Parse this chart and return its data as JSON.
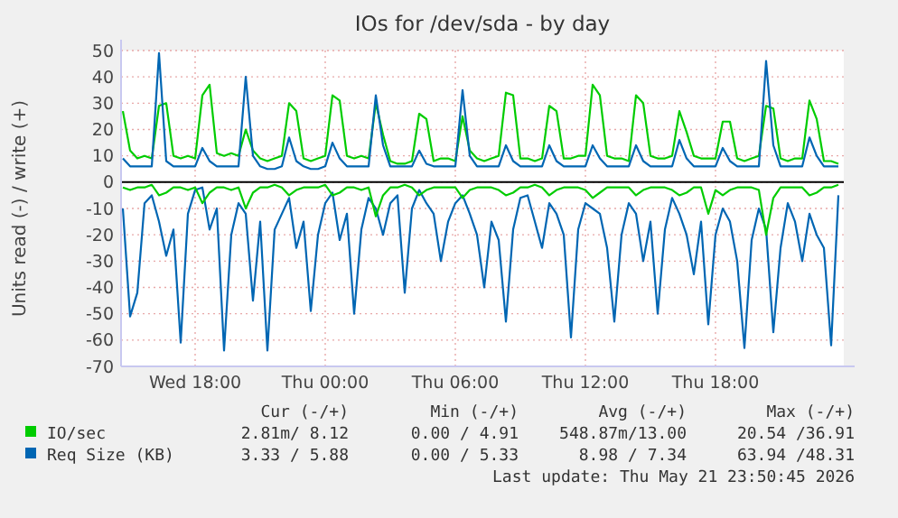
{
  "chart_data": {
    "type": "line",
    "title": "IOs for /dev/sda - by day",
    "ylabel": "Units read (-) / write (+)",
    "x": [
      "2026-05-20T14:40",
      "2026-05-20T15:00",
      "2026-05-20T15:20",
      "2026-05-20T15:40",
      "2026-05-20T16:00",
      "2026-05-20T16:20",
      "2026-05-20T16:40",
      "2026-05-20T17:00",
      "2026-05-20T17:20",
      "2026-05-20T17:40",
      "2026-05-20T18:00",
      "2026-05-20T18:20",
      "2026-05-20T18:40",
      "2026-05-20T19:00",
      "2026-05-20T19:20",
      "2026-05-20T19:40",
      "2026-05-20T20:00",
      "2026-05-20T20:20",
      "2026-05-20T20:40",
      "2026-05-20T21:00",
      "2026-05-20T21:20",
      "2026-05-20T21:40",
      "2026-05-20T22:00",
      "2026-05-20T22:20",
      "2026-05-20T22:40",
      "2026-05-20T23:00",
      "2026-05-20T23:20",
      "2026-05-20T23:40",
      "2026-05-21T00:00",
      "2026-05-21T00:20",
      "2026-05-21T00:40",
      "2026-05-21T01:00",
      "2026-05-21T01:20",
      "2026-05-21T01:40",
      "2026-05-21T02:00",
      "2026-05-21T02:20",
      "2026-05-21T02:40",
      "2026-05-21T03:00",
      "2026-05-21T03:20",
      "2026-05-21T03:40",
      "2026-05-21T04:00",
      "2026-05-21T04:20",
      "2026-05-21T04:40",
      "2026-05-21T05:00",
      "2026-05-21T05:20",
      "2026-05-21T05:40",
      "2026-05-21T06:00",
      "2026-05-21T06:20",
      "2026-05-21T06:40",
      "2026-05-21T07:00",
      "2026-05-21T07:20",
      "2026-05-21T07:40",
      "2026-05-21T08:00",
      "2026-05-21T08:20",
      "2026-05-21T08:40",
      "2026-05-21T09:00",
      "2026-05-21T09:20",
      "2026-05-21T09:40",
      "2026-05-21T10:00",
      "2026-05-21T10:20",
      "2026-05-21T10:40",
      "2026-05-21T11:00",
      "2026-05-21T11:20",
      "2026-05-21T11:40",
      "2026-05-21T12:00",
      "2026-05-21T12:20",
      "2026-05-21T12:40",
      "2026-05-21T13:00",
      "2026-05-21T13:20",
      "2026-05-21T13:40",
      "2026-05-21T14:00",
      "2026-05-21T14:20",
      "2026-05-21T14:40",
      "2026-05-21T15:00",
      "2026-05-21T15:20",
      "2026-05-21T15:40",
      "2026-05-21T16:00",
      "2026-05-21T16:20",
      "2026-05-21T16:40",
      "2026-05-21T17:00",
      "2026-05-21T17:20",
      "2026-05-21T17:40",
      "2026-05-21T18:00",
      "2026-05-21T18:20",
      "2026-05-21T18:40",
      "2026-05-21T19:00",
      "2026-05-21T19:20",
      "2026-05-21T19:40",
      "2026-05-21T20:00",
      "2026-05-21T20:20",
      "2026-05-21T20:40",
      "2026-05-21T21:00",
      "2026-05-21T21:20",
      "2026-05-21T21:40",
      "2026-05-21T22:00",
      "2026-05-21T22:20",
      "2026-05-21T22:40",
      "2026-05-21T23:00",
      "2026-05-21T23:20",
      "2026-05-21T23:40"
    ],
    "series": [
      {
        "color": "#0066b3",
        "values": [
          -10,
          -51,
          -42,
          -8,
          -5,
          -15,
          -28,
          -18,
          -61,
          -12,
          -3,
          -2,
          -18,
          -10,
          -64,
          -20,
          -8,
          -12,
          -45,
          -15,
          -64,
          -18,
          -12,
          -6,
          -25,
          -15,
          -49,
          -20,
          -8,
          -4,
          -22,
          -12,
          -50,
          -18,
          -6,
          -10,
          -20,
          -8,
          -5,
          -42,
          -10,
          -3,
          -8,
          -12,
          -30,
          -15,
          -8,
          -5,
          -12,
          -20,
          -40,
          -15,
          -22,
          -53,
          -18,
          -6,
          -5,
          -15,
          -25,
          -8,
          -12,
          -20,
          -59,
          -18,
          -8,
          -10,
          -12,
          -25,
          -53,
          -20,
          -8,
          -12,
          -30,
          -15,
          -50,
          -18,
          -6,
          -12,
          -20,
          -35,
          -15,
          -54,
          -20,
          -10,
          -15,
          -30,
          -63,
          -22,
          -10,
          -18,
          -57,
          -25,
          -8,
          -15,
          -30,
          -12,
          -20,
          -25,
          -62,
          -5
        ]
      },
      {
        "color": "#00cc00",
        "values": [
          -2,
          -3,
          -2,
          -2,
          -1,
          -5,
          -4,
          -2,
          -2,
          -3,
          -2,
          -8,
          -4,
          -2,
          -2,
          -3,
          -2,
          -10,
          -4,
          -2,
          -2,
          -1,
          -2,
          -5,
          -3,
          -2,
          -2,
          -2,
          -1,
          -5,
          -4,
          -2,
          -2,
          -3,
          -2,
          -13,
          -5,
          -2,
          -2,
          -1,
          -2,
          -5,
          -3,
          -2,
          -2,
          -2,
          -2,
          -6,
          -3,
          -2,
          -2,
          -2,
          -3,
          -5,
          -4,
          -2,
          -2,
          -1,
          -2,
          -5,
          -3,
          -2,
          -2,
          -2,
          -3,
          -6,
          -4,
          -2,
          -2,
          -2,
          -2,
          -5,
          -3,
          -2,
          -2,
          -2,
          -3,
          -5,
          -4,
          -2,
          -2,
          -12,
          -3,
          -5,
          -3,
          -2,
          -2,
          -2,
          -3,
          -20,
          -6,
          -2,
          -2,
          -2,
          -2,
          -5,
          -4,
          -2,
          -2,
          -1
        ]
      },
      {
        "name": "IO/sec",
        "color": "#00cc00",
        "values": [
          27,
          12,
          9,
          10,
          9,
          29,
          30,
          10,
          9,
          10,
          9,
          33,
          37,
          11,
          10,
          11,
          10,
          20,
          12,
          9,
          8,
          9,
          10,
          30,
          27,
          9,
          8,
          9,
          10,
          33,
          31,
          10,
          9,
          10,
          9,
          30,
          18,
          8,
          7,
          7,
          8,
          26,
          24,
          8,
          9,
          9,
          8,
          25,
          12,
          9,
          8,
          9,
          10,
          34,
          33,
          9,
          9,
          8,
          9,
          29,
          27,
          9,
          9,
          10,
          10,
          37,
          33,
          10,
          9,
          9,
          8,
          33,
          30,
          10,
          9,
          9,
          10,
          27,
          19,
          10,
          9,
          9,
          9,
          23,
          23,
          9,
          8,
          9,
          10,
          29,
          28,
          9,
          8,
          9,
          9,
          31,
          24,
          8,
          8,
          7
        ]
      },
      {
        "name": "Req Size (KB)",
        "color": "#0066b3",
        "values": [
          9,
          6,
          6,
          6,
          6,
          49,
          8,
          6,
          6,
          6,
          6,
          13,
          8,
          6,
          6,
          6,
          6,
          40,
          10,
          6,
          5,
          5,
          6,
          17,
          8,
          6,
          5,
          5,
          6,
          15,
          9,
          6,
          6,
          6,
          6,
          33,
          14,
          6,
          6,
          6,
          6,
          12,
          7,
          6,
          6,
          6,
          6,
          35,
          10,
          6,
          6,
          6,
          6,
          14,
          8,
          6,
          6,
          6,
          6,
          14,
          8,
          6,
          6,
          6,
          6,
          14,
          9,
          6,
          6,
          6,
          6,
          14,
          8,
          6,
          6,
          6,
          6,
          16,
          9,
          6,
          6,
          6,
          6,
          13,
          8,
          6,
          6,
          6,
          6,
          46,
          14,
          6,
          6,
          6,
          6,
          17,
          10,
          6,
          6,
          6
        ]
      }
    ],
    "xlim": [
      "2026-05-20T14:35",
      "2026-05-21T23:55"
    ],
    "xticks": [
      {
        "value": "2026-05-20T18:00",
        "label": "Wed 18:00"
      },
      {
        "value": "2026-05-21T00:00",
        "label": "Thu 00:00"
      },
      {
        "value": "2026-05-21T06:00",
        "label": "Thu 06:00"
      },
      {
        "value": "2026-05-21T12:00",
        "label": "Thu 12:00"
      },
      {
        "value": "2026-05-21T18:00",
        "label": "Thu 18:00"
      }
    ],
    "ylim": [
      -70,
      50
    ],
    "yticks": [
      -70,
      -60,
      -50,
      -40,
      -30,
      -20,
      -10,
      0,
      10,
      20,
      30,
      40,
      50
    ],
    "ref_lines": [
      {
        "axis": "y",
        "value": 0,
        "color": "#000000"
      }
    ],
    "grid": true,
    "legend": "bottom",
    "annotations": [
      "Cur (-/+)",
      "Min (-/+)",
      "Avg (-/+)",
      "Max (-/+)",
      "2.81m/ 8.12",
      "0.00 / 4.91",
      "548.87m/13.00",
      "20.54 /36.91",
      "3.33 / 5.88",
      "0.00 / 5.33",
      "8.98 / 7.34",
      "63.94 /48.31",
      "Last update: Thu May 21 23:50:45 2026"
    ]
  }
}
